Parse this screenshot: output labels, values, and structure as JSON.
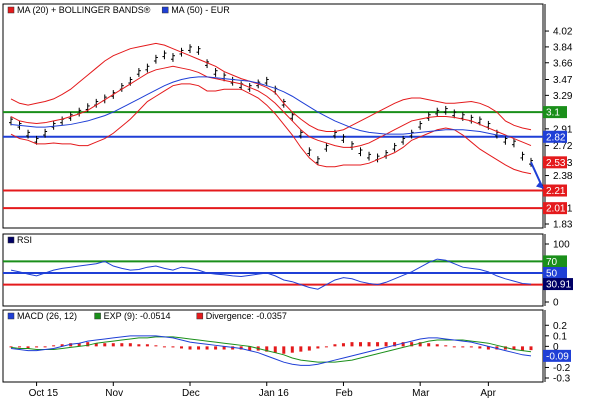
{
  "chart_data": [
    {
      "type": "ohlc",
      "panel": "price",
      "legend": [
        {
          "label": "MA (20) + BOLLINGER BANDS®",
          "color": "#e41a1c"
        },
        {
          "label": "MA (50) - EUR",
          "color": "#1f3fd6"
        }
      ],
      "y_ticks": [
        4.02,
        3.84,
        3.66,
        3.47,
        3.29,
        3.1,
        2.91,
        2.72,
        2.53,
        2.38,
        2.2,
        2.01,
        1.83
      ],
      "ylim": [
        1.83,
        4.1
      ],
      "horizontal_lines": [
        {
          "value": 3.1,
          "color": "#1a8f1a",
          "label": "3.1"
        },
        {
          "value": 2.82,
          "color": "#1f3fd6",
          "label": "2.82"
        },
        {
          "value": 2.21,
          "color": "#e41a1c",
          "label": "2.21"
        },
        {
          "value": 2.01,
          "color": "#e41a1c",
          "label": "2.01"
        }
      ],
      "last_price_tag": {
        "value": 2.53,
        "color": "#e41a1c",
        "label": "2.53"
      },
      "series": [
        {
          "name": "Price",
          "values": [
            3.0,
            2.95,
            2.85,
            2.78,
            2.86,
            2.95,
            3.0,
            3.05,
            3.1,
            3.15,
            3.2,
            3.25,
            3.3,
            3.38,
            3.45,
            3.55,
            3.6,
            3.7,
            3.75,
            3.72,
            3.78,
            3.82,
            3.8,
            3.65,
            3.55,
            3.5,
            3.45,
            3.4,
            3.38,
            3.42,
            3.45,
            3.35,
            3.2,
            3.05,
            2.85,
            2.65,
            2.55,
            2.7,
            2.85,
            2.8,
            2.72,
            2.65,
            2.6,
            2.58,
            2.62,
            2.7,
            2.78,
            2.85,
            2.95,
            3.05,
            3.1,
            3.12,
            3.08,
            3.05,
            3.02,
            3.0,
            2.95,
            2.85,
            2.78,
            2.75,
            2.6,
            2.53
          ]
        },
        {
          "name": "MA (20)",
          "values": [
            3.05,
            3.0,
            2.98,
            2.97,
            2.98,
            3.0,
            3.02,
            3.05,
            3.08,
            3.12,
            3.18,
            3.24,
            3.3,
            3.36,
            3.42,
            3.48,
            3.54,
            3.58,
            3.6,
            3.62,
            3.6,
            3.58,
            3.55,
            3.5,
            3.48,
            3.46,
            3.44,
            3.42,
            3.38,
            3.34,
            3.28,
            3.2,
            3.1,
            3.0,
            2.9,
            2.82,
            2.78,
            2.75,
            2.72,
            2.7,
            2.7,
            2.72,
            2.75,
            2.8,
            2.85,
            2.9,
            2.95,
            3.0,
            3.02,
            3.04,
            3.05,
            3.05,
            3.04,
            3.02,
            3.0,
            2.96,
            2.92,
            2.88,
            2.84,
            2.8,
            2.76,
            2.72
          ]
        },
        {
          "name": "Upper band",
          "values": [
            3.25,
            3.2,
            3.18,
            3.2,
            3.22,
            3.25,
            3.3,
            3.36,
            3.44,
            3.52,
            3.6,
            3.68,
            3.74,
            3.78,
            3.82,
            3.84,
            3.86,
            3.88,
            3.86,
            3.82,
            3.78,
            3.74,
            3.7,
            3.66,
            3.62,
            3.56,
            3.52,
            3.48,
            3.45,
            3.42,
            3.38,
            3.32,
            3.2,
            3.1,
            3.02,
            2.95,
            2.9,
            2.88,
            2.88,
            2.9,
            2.95,
            3.0,
            3.05,
            3.1,
            3.15,
            3.2,
            3.24,
            3.26,
            3.26,
            3.24,
            3.22,
            3.2,
            3.2,
            3.21,
            3.22,
            3.2,
            3.16,
            3.1,
            3.0,
            2.95,
            2.92,
            2.9
          ]
        },
        {
          "name": "Lower band",
          "values": [
            2.85,
            2.8,
            2.78,
            2.74,
            2.74,
            2.75,
            2.74,
            2.74,
            2.72,
            2.72,
            2.76,
            2.8,
            2.86,
            2.94,
            3.02,
            3.12,
            3.22,
            3.28,
            3.34,
            3.4,
            3.42,
            3.42,
            3.4,
            3.34,
            3.34,
            3.36,
            3.36,
            3.36,
            3.31,
            3.26,
            3.18,
            3.08,
            2.96,
            2.84,
            2.7,
            2.58,
            2.5,
            2.48,
            2.48,
            2.5,
            2.5,
            2.5,
            2.52,
            2.56,
            2.6,
            2.64,
            2.7,
            2.78,
            2.82,
            2.86,
            2.9,
            2.92,
            2.9,
            2.84,
            2.76,
            2.68,
            2.62,
            2.56,
            2.5,
            2.45,
            2.42,
            2.4
          ]
        },
        {
          "name": "MA (50)",
          "values": [
            2.96,
            2.95,
            2.94,
            2.93,
            2.93,
            2.94,
            2.95,
            2.96,
            2.98,
            3.0,
            3.03,
            3.06,
            3.1,
            3.15,
            3.2,
            3.25,
            3.3,
            3.35,
            3.4,
            3.44,
            3.47,
            3.49,
            3.5,
            3.5,
            3.49,
            3.48,
            3.47,
            3.46,
            3.45,
            3.43,
            3.4,
            3.37,
            3.33,
            3.28,
            3.22,
            3.16,
            3.1,
            3.05,
            3.0,
            2.96,
            2.92,
            2.89,
            2.87,
            2.86,
            2.85,
            2.85,
            2.85,
            2.86,
            2.87,
            2.88,
            2.89,
            2.9,
            2.9,
            2.9,
            2.89,
            2.88,
            2.86,
            2.84,
            2.83,
            2.82,
            2.82,
            2.82
          ]
        }
      ],
      "projection": {
        "from": 2.53,
        "to": 2.21,
        "color": "#1f3fd6"
      }
    },
    {
      "type": "line",
      "panel": "rsi",
      "legend": [
        {
          "label": "RSI",
          "color": "#000066"
        }
      ],
      "y_ticks": [
        100,
        70,
        50,
        30,
        0
      ],
      "ylim": [
        0,
        100
      ],
      "horizontal_lines": [
        {
          "value": 70,
          "color": "#1a8f1a",
          "label": "70"
        },
        {
          "value": 50,
          "color": "#1f3fd6",
          "label": "50"
        },
        {
          "value": 30,
          "color": "#e41a1c",
          "label": ""
        }
      ],
      "last_value_tag": {
        "value": 30.91,
        "label": "30.91",
        "color": "#000066"
      },
      "series": [
        {
          "name": "RSI",
          "values": [
            55,
            52,
            48,
            45,
            50,
            55,
            58,
            60,
            62,
            64,
            66,
            70,
            62,
            58,
            55,
            56,
            60,
            62,
            58,
            55,
            60,
            58,
            55,
            50,
            48,
            47,
            45,
            44,
            46,
            48,
            50,
            45,
            38,
            35,
            30,
            25,
            22,
            30,
            38,
            42,
            40,
            35,
            32,
            30,
            34,
            40,
            46,
            52,
            60,
            68,
            74,
            72,
            66,
            60,
            58,
            56,
            52,
            45,
            40,
            36,
            32,
            30.91
          ]
        }
      ]
    },
    {
      "type": "line",
      "panel": "macd",
      "legend": [
        {
          "label": "MACD (26, 12)",
          "color": "#1f3fd6"
        },
        {
          "label": "EXP (9): -0.0514",
          "color": "#1a8f1a"
        },
        {
          "label": "Divergence: -0.0357",
          "color": "#e41a1c"
        }
      ],
      "y_ticks": [
        0.2,
        0.1,
        0,
        -0.1,
        -0.2,
        -0.3
      ],
      "ylim": [
        -0.3,
        0.25
      ],
      "last_value_tag": {
        "value": -0.09,
        "label": "-0.09",
        "color": "#1f3fd6"
      },
      "series": [
        {
          "name": "MACD (26, 12)",
          "values": [
            -0.02,
            -0.03,
            -0.04,
            -0.04,
            -0.03,
            -0.02,
            0.0,
            0.02,
            0.03,
            0.05,
            0.06,
            0.07,
            0.08,
            0.09,
            0.1,
            0.1,
            0.1,
            0.1,
            0.09,
            0.08,
            0.06,
            0.04,
            0.03,
            0.02,
            0.01,
            0.0,
            -0.01,
            -0.02,
            -0.04,
            -0.06,
            -0.09,
            -0.12,
            -0.15,
            -0.17,
            -0.18,
            -0.18,
            -0.17,
            -0.15,
            -0.13,
            -0.11,
            -0.09,
            -0.07,
            -0.05,
            -0.03,
            -0.01,
            0.01,
            0.03,
            0.05,
            0.07,
            0.08,
            0.08,
            0.07,
            0.06,
            0.05,
            0.04,
            0.02,
            0.0,
            -0.02,
            -0.04,
            -0.06,
            -0.08,
            -0.09
          ]
        },
        {
          "name": "EXP (9)",
          "values": [
            -0.01,
            -0.02,
            -0.02,
            -0.03,
            -0.03,
            -0.03,
            -0.02,
            -0.01,
            0.0,
            0.01,
            0.03,
            0.04,
            0.05,
            0.06,
            0.07,
            0.08,
            0.08,
            0.09,
            0.09,
            0.09,
            0.08,
            0.07,
            0.06,
            0.05,
            0.04,
            0.03,
            0.02,
            0.01,
            0.0,
            -0.02,
            -0.04,
            -0.06,
            -0.08,
            -0.11,
            -0.13,
            -0.14,
            -0.15,
            -0.15,
            -0.15,
            -0.14,
            -0.13,
            -0.11,
            -0.09,
            -0.07,
            -0.05,
            -0.03,
            -0.01,
            0.01,
            0.03,
            0.05,
            0.06,
            0.06,
            0.06,
            0.06,
            0.05,
            0.04,
            0.03,
            0.01,
            -0.01,
            -0.03,
            -0.04,
            -0.0514
          ]
        },
        {
          "name": "Divergence",
          "values": [
            -0.01,
            -0.01,
            -0.02,
            -0.01,
            0.0,
            0.01,
            0.02,
            0.03,
            0.03,
            0.04,
            0.03,
            0.03,
            0.03,
            0.03,
            0.03,
            0.02,
            0.02,
            0.01,
            0.0,
            -0.01,
            -0.02,
            -0.03,
            -0.03,
            -0.03,
            -0.03,
            -0.03,
            -0.03,
            -0.03,
            -0.04,
            -0.04,
            -0.05,
            -0.06,
            -0.07,
            -0.06,
            -0.05,
            -0.04,
            -0.02,
            0.0,
            0.02,
            0.03,
            0.04,
            0.04,
            0.04,
            0.04,
            0.04,
            0.04,
            0.04,
            0.04,
            0.04,
            0.03,
            0.02,
            0.01,
            0.0,
            -0.01,
            -0.01,
            -0.02,
            -0.03,
            -0.03,
            -0.03,
            -0.03,
            -0.04,
            -0.0357
          ]
        }
      ]
    }
  ],
  "x_axis": {
    "ticks": [
      "Oct 15",
      "Nov",
      "Dec",
      "Jan 16",
      "Feb",
      "Mar",
      "Apr"
    ],
    "tick_index": [
      3,
      12,
      21,
      30,
      39,
      48,
      56
    ]
  }
}
